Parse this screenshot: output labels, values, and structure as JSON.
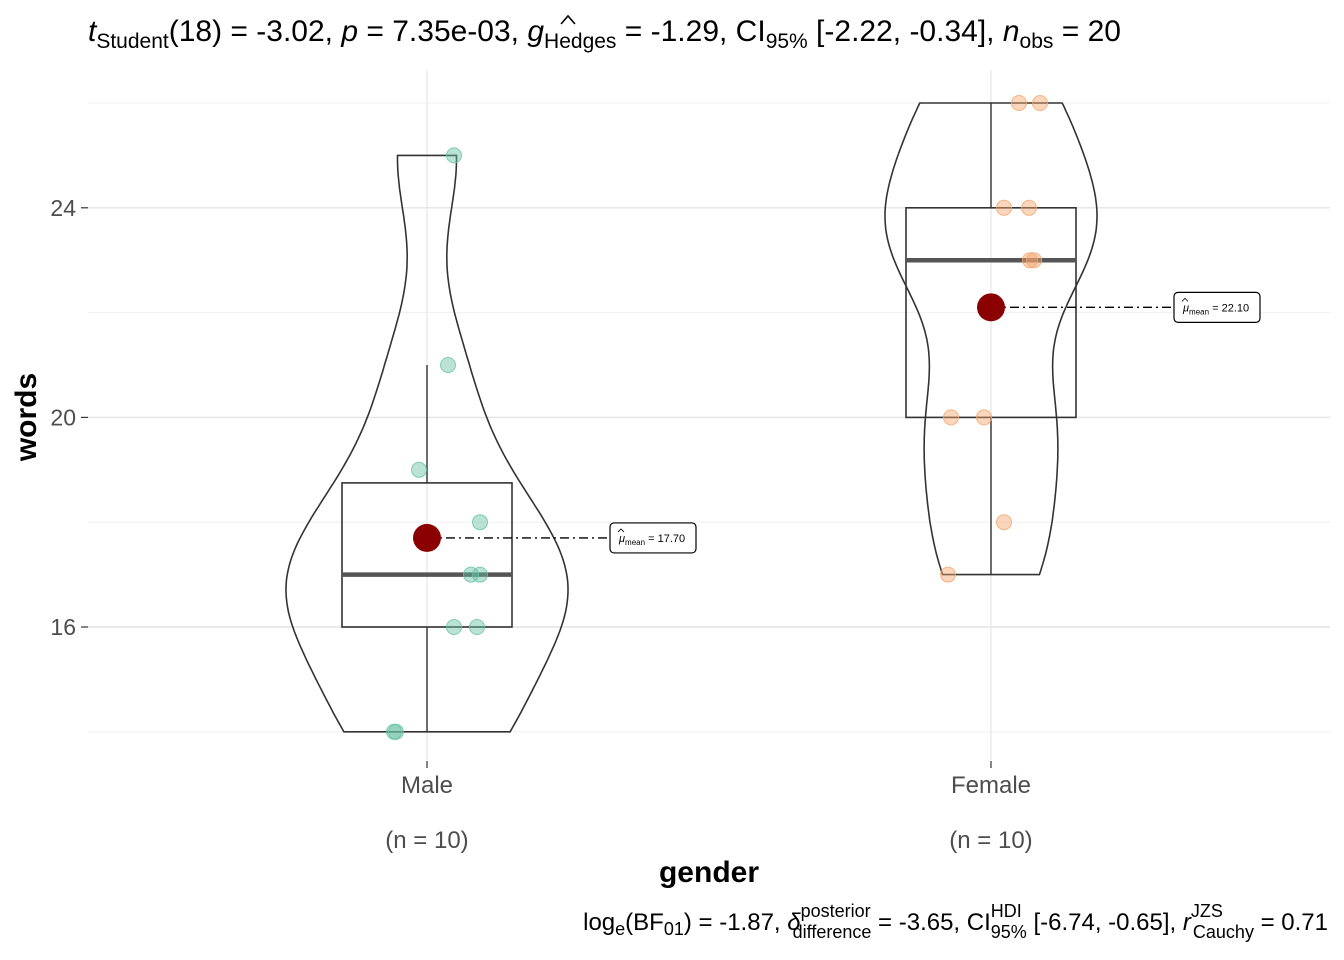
{
  "chart_data": {
    "type": "violin-box-scatter",
    "xlabel": "gender",
    "ylabel": "words",
    "ylim": [
      13.4,
      26.6
    ],
    "yticks": [
      16,
      20,
      24
    ],
    "grid": true,
    "groups": [
      {
        "name": "Male",
        "n_label": "(n = 10)",
        "color": "#66C2A5",
        "points": [
          14,
          14,
          16,
          16,
          17,
          17,
          18,
          19,
          21,
          25
        ],
        "box": {
          "q1": 16,
          "median": 17,
          "q3": 18.75,
          "whisker_low": 14,
          "whisker_high": 21
        },
        "mean": 17.7,
        "mean_label": "= 17.70",
        "violin_range": [
          14,
          25
        ]
      },
      {
        "name": "Female",
        "n_label": "(n = 10)",
        "color": "#F4A56B",
        "points": [
          17,
          18,
          20,
          20,
          23,
          23,
          24,
          24,
          26,
          26
        ],
        "box": {
          "q1": 20,
          "median": 23,
          "q3": 24,
          "whisker_low": 17,
          "whisker_high": 26
        },
        "mean": 22.1,
        "mean_label": "= 22.10",
        "violin_range": [
          17,
          26
        ]
      }
    ],
    "mean_color": "#8B0000",
    "title": {
      "t_symbol": "t",
      "t_sub": "Student",
      "t_value": "(18) = -3.02,",
      "p_symbol": "p",
      "p_value": " = 7.35e-03,",
      "g_symbol": "g",
      "g_sub": "Hedges",
      "g_value": " = -1.29, CI",
      "ci_sub": "95%",
      "ci_value": " [-2.22, -0.34],",
      "n_symbol": "n",
      "n_sub": "obs",
      "n_value": " = 20"
    },
    "caption": {
      "log_prefix": "log",
      "log_sub": "e",
      "bf_text": "(BF",
      "bf_sub": "01",
      "bf_value": ") = -1.87,",
      "delta_symbol": "δ",
      "delta_sup": "posterior",
      "delta_sub": "difference",
      "delta_value": " = -3.65, CI",
      "hdi_sup": "HDI",
      "hdi_sub": "95%",
      "hdi_value": " [-6.74, -0.65],",
      "r_symbol": "r",
      "r_sup": "JZS",
      "r_sub": "Cauchy",
      "r_value": " = 0.71"
    },
    "mean_symbol": "μ",
    "mean_sub": "mean"
  }
}
